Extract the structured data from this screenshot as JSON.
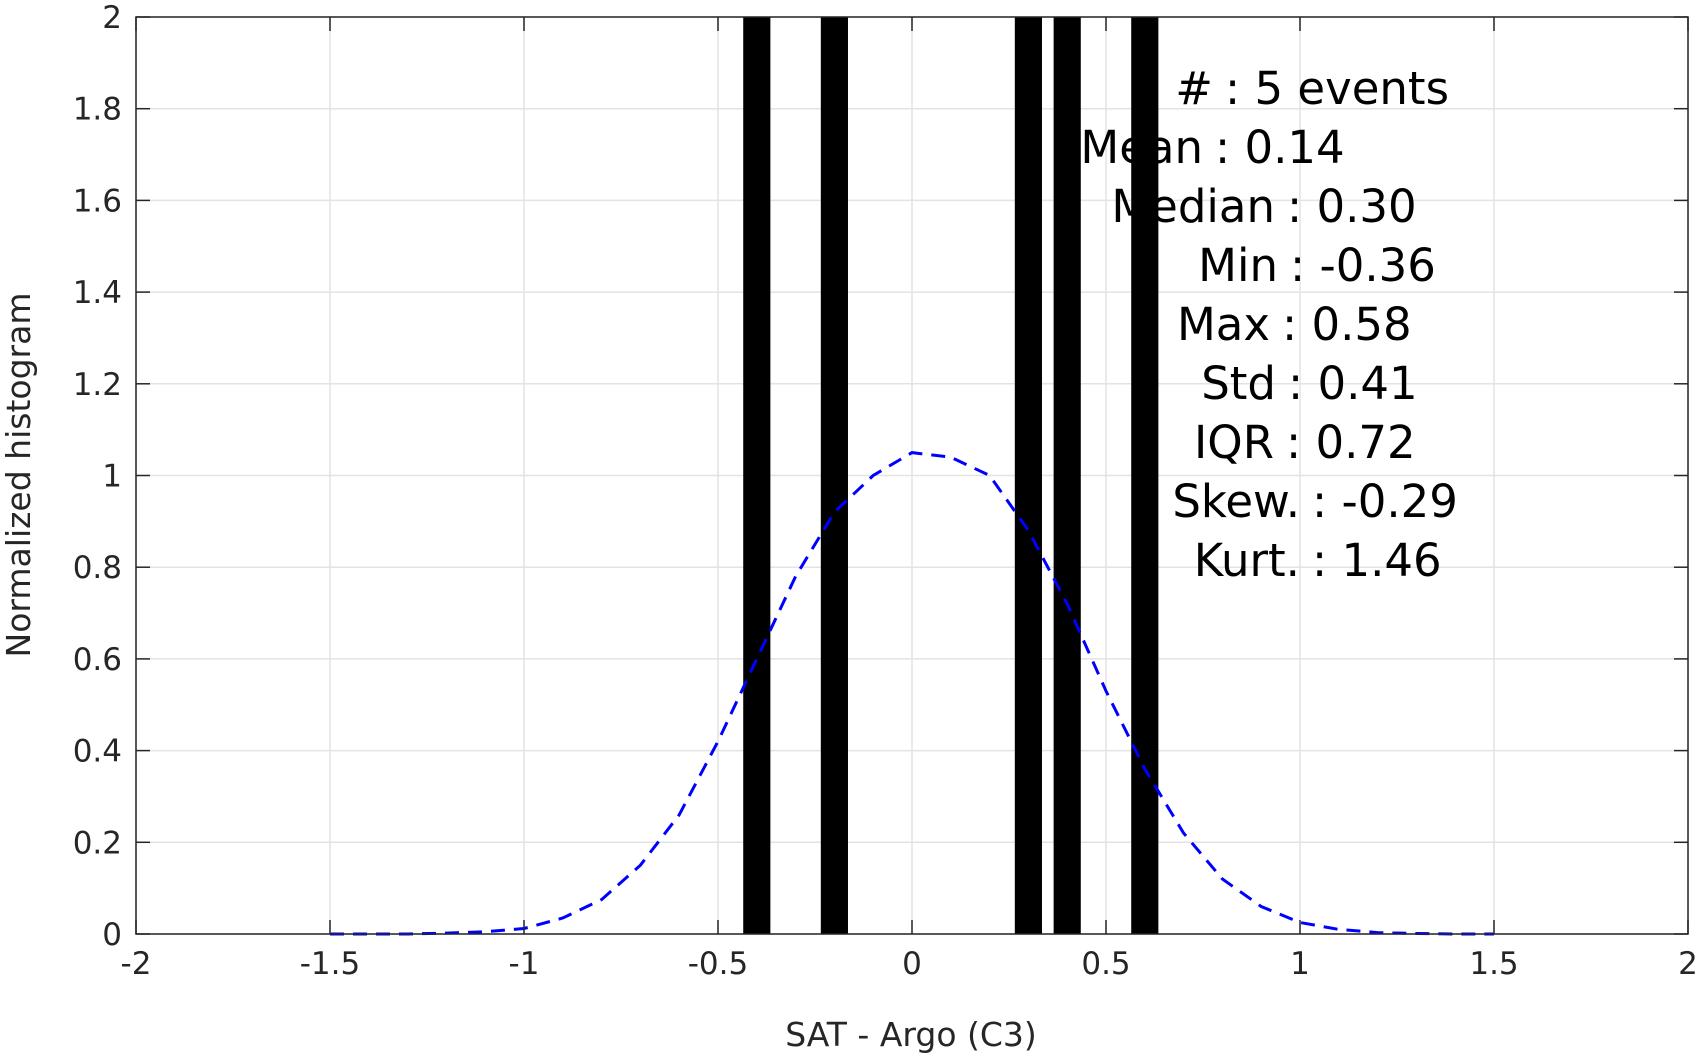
{
  "chart_data": {
    "type": "bar",
    "xlabel": "SAT - Argo (C3)",
    "ylabel": "Normalized histogram",
    "xlim": [
      -2,
      2
    ],
    "ylim": [
      0,
      2
    ],
    "grid": true,
    "x_ticks": [
      -2,
      -1.5,
      -1,
      -0.5,
      0,
      0.5,
      1,
      1.5,
      2
    ],
    "x_tick_labels": [
      "-2",
      "-1.5",
      "-1",
      "-0.5",
      "0",
      "0.5",
      "1",
      "1.5",
      "2"
    ],
    "y_ticks": [
      0,
      0.2,
      0.4,
      0.6,
      0.8,
      1,
      1.2,
      1.4,
      1.6,
      1.8,
      2
    ],
    "y_tick_labels": [
      "0",
      "0.2",
      "0.4",
      "0.6",
      "0.8",
      "1",
      "1.2",
      "1.4",
      "1.6",
      "1.8",
      "2"
    ],
    "bar_color": "#000000",
    "bars": [
      {
        "x0": -0.435,
        "x1": -0.365,
        "value": 2
      },
      {
        "x0": -0.235,
        "x1": -0.165,
        "value": 2
      },
      {
        "x0": 0.265,
        "x1": 0.335,
        "value": 2
      },
      {
        "x0": 0.365,
        "x1": 0.435,
        "value": 2
      },
      {
        "x0": 0.565,
        "x1": 0.635,
        "value": 2
      }
    ],
    "curve": {
      "style": "dashed",
      "color": "#0000ff",
      "x": [
        -1.5,
        -1.4,
        -1.3,
        -1.2,
        -1.1,
        -1.0,
        -0.9,
        -0.8,
        -0.7,
        -0.6,
        -0.5,
        -0.4,
        -0.3,
        -0.2,
        -0.1,
        0.0,
        0.1,
        0.2,
        0.3,
        0.4,
        0.5,
        0.6,
        0.7,
        0.8,
        0.9,
        1.0,
        1.1,
        1.2,
        1.3,
        1.4,
        1.5
      ],
      "y": [
        0.0,
        0.0,
        0.0,
        0.002,
        0.005,
        0.012,
        0.035,
        0.075,
        0.15,
        0.26,
        0.42,
        0.6,
        0.78,
        0.92,
        1.0,
        1.05,
        1.04,
        1.0,
        0.88,
        0.72,
        0.53,
        0.36,
        0.22,
        0.12,
        0.06,
        0.025,
        0.01,
        0.003,
        0.001,
        0.0,
        0.0
      ]
    },
    "stats": [
      {
        "label": "#",
        "value": ": 5 events"
      },
      {
        "label": "Mean",
        "value": ": 0.14"
      },
      {
        "label": "Median",
        "value": ": 0.30"
      },
      {
        "label": "Min",
        "value": ": -0.36"
      },
      {
        "label": "Max",
        "value": ": 0.58"
      },
      {
        "label": "Std",
        "value": ": 0.41"
      },
      {
        "label": "IQR",
        "value": ": 0.72"
      },
      {
        "label": "Skew.",
        "value": ": -0.29"
      },
      {
        "label": "Kurt.",
        "value": ": 1.46"
      }
    ]
  }
}
